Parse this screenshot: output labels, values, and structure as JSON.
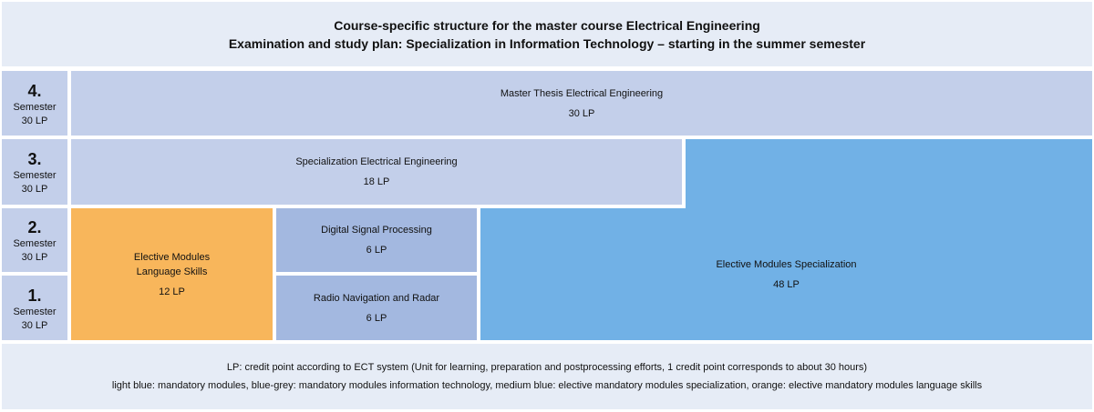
{
  "header": {
    "line1": "Course-specific structure for the master course Electrical Engineering",
    "line2": "Examination and study plan: Specialization in Information Technology – starting in the summer semester"
  },
  "semesters": [
    {
      "number": "4.",
      "word": "Semester",
      "credits": "30 LP"
    },
    {
      "number": "3.",
      "word": "Semester",
      "credits": "30 LP"
    },
    {
      "number": "2.",
      "word": "Semester",
      "credits": "30 LP"
    },
    {
      "number": "1.",
      "word": "Semester",
      "credits": "30 LP"
    }
  ],
  "modules": {
    "master_thesis": {
      "title": "Master Thesis Electrical Engineering",
      "credits": "30 LP"
    },
    "specialization_ee": {
      "title": "Specialization Electrical Engineering",
      "credits": "18 LP"
    },
    "language_skills": {
      "title_line1": "Elective Modules",
      "title_line2": "Language Skills",
      "credits": "12 LP"
    },
    "digital_signal_processing": {
      "title": "Digital Signal Processing",
      "credits": "6 LP"
    },
    "radio_navigation": {
      "title": "Radio Navigation and Radar",
      "credits": "6 LP"
    },
    "elective_specialization": {
      "title": "Elective Modules Specialization",
      "credits": "48 LP"
    }
  },
  "footer": {
    "line1": "LP: credit point according to ECT system (Unit for learning, preparation and postprocessing efforts, 1 credit point corresponds to about 30 hours)",
    "line2": "light blue: mandatory modules, blue-grey: mandatory modules information technology, medium blue: elective mandatory modules specialization, orange: elective mandatory modules language skills"
  },
  "colors": {
    "background_panel": "#e6ecf6",
    "light_blue": "#c3cfea",
    "blue_grey": "#a3b8e0",
    "medium_blue": "#71b1e6",
    "orange": "#f8b65b"
  }
}
